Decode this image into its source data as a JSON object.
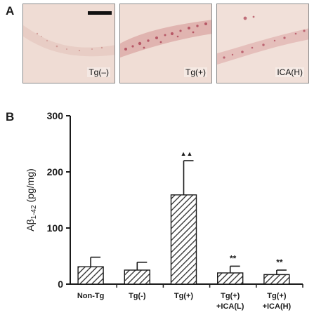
{
  "panel_a": {
    "letter": "A",
    "images": [
      {
        "label": "Tg(–)",
        "icon": "tissue-section-image",
        "staining": "light"
      },
      {
        "label": "Tg(+)",
        "icon": "tissue-section-image",
        "staining": "dense"
      },
      {
        "label": "ICA(H)",
        "icon": "tissue-section-image",
        "staining": "medium"
      }
    ],
    "scale_bar": true
  },
  "panel_b": {
    "letter": "B"
  },
  "colors": {
    "bar_fill": "#ffffff",
    "bar_hatch": "#2b2b2b",
    "axis": "#1a1a1a",
    "tissue_background": "#efdcd4",
    "stain": "#b0485a"
  },
  "chart_data": {
    "type": "bar",
    "categories": [
      "Non-Tg",
      "Tg(-)",
      "Tg(+)",
      "Tg(+)\n+ICA(L)",
      "Tg(+)\n+ICA(H)"
    ],
    "series": [
      {
        "values": [
          31,
          25,
          159,
          20,
          17
        ],
        "errors": [
          17,
          14,
          61,
          12,
          8
        ]
      }
    ],
    "annotations": [
      "",
      "",
      "▲▲",
      "**",
      "**"
    ],
    "ylabel": "Aβ1-42 (pg/mg)",
    "ylabel_main": "Aβ",
    "ylabel_sub": "1-42",
    "ylabel_unit": " (pg/mg)",
    "yticks": [
      0,
      100,
      200,
      300
    ],
    "ylim": [
      0,
      300
    ],
    "grid": false,
    "bar_style": "diagonal hatch"
  }
}
